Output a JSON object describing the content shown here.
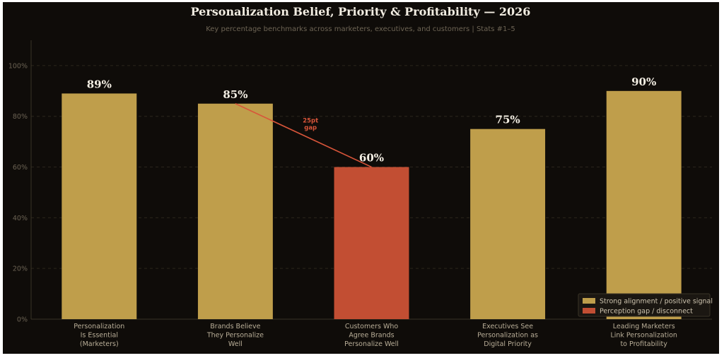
{
  "chart_data": {
    "type": "bar",
    "title": "Personalization Belief, Priority & Profitability — 2026",
    "subtitle": "Key percentage benchmarks across marketers, executives, and customers  |  Stats #1–5",
    "xlabel": "",
    "ylabel": "",
    "ylim": [
      0,
      110
    ],
    "yticks": [
      0,
      20,
      40,
      60,
      80,
      100
    ],
    "ytick_labels": [
      "0%",
      "20%",
      "40%",
      "60%",
      "80%",
      "100%"
    ],
    "grid": "horizontal-dashed",
    "legend_position": "bottom-right",
    "categories": [
      [
        "Personalization",
        "Is Essential",
        "(Marketers)"
      ],
      [
        "Brands Believe",
        "They Personalize",
        "Well"
      ],
      [
        "Customers Who",
        "Agree Brands",
        "Personalize Well"
      ],
      [
        "Executives See",
        "Personalization as",
        "Digital Priority"
      ],
      [
        "Leading Marketers",
        "Link Personalization",
        "to Profitability"
      ]
    ],
    "values": [
      89,
      85,
      60,
      75,
      90
    ],
    "value_labels": [
      "89%",
      "85%",
      "60%",
      "75%",
      "90%"
    ],
    "bar_groups": [
      "positive",
      "positive",
      "gap",
      "positive",
      "positive"
    ],
    "legend": [
      {
        "key": "positive",
        "label": "Strong alignment / positive signal",
        "color": "#bf9e4b"
      },
      {
        "key": "gap",
        "label": "Perception gap / disconnect",
        "color": "#c24e33"
      }
    ],
    "annotation": {
      "from_index": 1,
      "to_index": 2,
      "from_value": 85,
      "to_value": 60,
      "lines": [
        "25pt",
        "gap"
      ],
      "color": "#d8553a"
    }
  },
  "colors": {
    "background": "#0f0c09",
    "grid": "#2b261d",
    "axis": "#3a3326"
  }
}
